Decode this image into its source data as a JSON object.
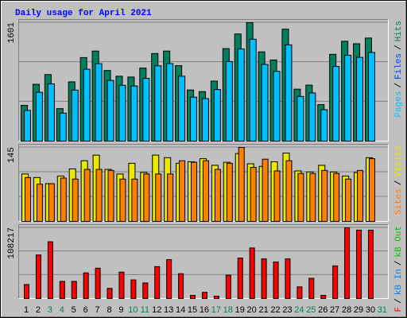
{
  "chart_data": [
    {
      "type": "bar",
      "title": "Daily usage for April 2021",
      "title_color": "#0000ff",
      "ylim": [
        0,
        1601
      ],
      "yticks": [
        1601
      ],
      "grid": true,
      "series": [
        {
          "name": "Hits",
          "color": "#00805c",
          "values": [
            483,
            768,
            899,
            439,
            801,
            1129,
            1217,
            954,
            877,
            866,
            987,
            1184,
            1217,
            1020,
            691,
            669,
            811,
            1250,
            1448,
            1601,
            1206,
            1097,
            1513,
            702,
            757,
            493,
            1173,
            1349,
            1316,
            1393,
            null
          ]
        },
        {
          "name": "Files",
          "color": "#0040ff",
          "values": [
            266,
            422,
            494,
            241,
            441,
            621,
            669,
            525,
            482,
            476,
            543,
            651,
            669,
            561,
            380,
            368,
            446,
            688,
            796,
            881,
            663,
            603,
            832,
            386,
            416,
            271,
            645,
            742,
            724,
            766,
            null
          ]
        },
        {
          "name": "Pages",
          "color": "#00c0ff",
          "values": [
            415,
            660,
            773,
            378,
            689,
            971,
            1047,
            820,
            754,
            745,
            849,
            1018,
            1047,
            877,
            594,
            575,
            697,
            1075,
            1245,
            1377,
            1037,
            943,
            1301,
            604,
            651,
            424,
            1009,
            1160,
            1132,
            1198,
            null
          ]
        }
      ]
    },
    {
      "type": "bar",
      "ylim": [
        0,
        145
      ],
      "yticks": [
        145
      ],
      "grid": true,
      "series": [
        {
          "name": "Visits",
          "color": "#e8e800",
          "values": [
            93,
            86,
            74,
            89,
            103,
            119,
            130,
            102,
            93,
            114,
            96,
            130,
            125,
            114,
            117,
            123,
            110,
            116,
            133,
            113,
            108,
            117,
            134,
            99,
            97,
            110,
            97,
            89,
            96,
            125,
            null
          ]
        },
        {
          "name": "Sites",
          "color": "#ff8000",
          "values": [
            86,
            73,
            74,
            85,
            83,
            102,
            102,
            100,
            83,
            83,
            93,
            93,
            93,
            119,
            116,
            119,
            102,
            114,
            145,
            106,
            122,
            99,
            119,
            94,
            94,
            100,
            94,
            83,
            100,
            123,
            null
          ]
        }
      ]
    },
    {
      "type": "bar",
      "ylim": [
        0,
        108217
      ],
      "yticks": [
        108217
      ],
      "grid": true,
      "categories": [
        "1",
        "2",
        "3",
        "4",
        "5",
        "6",
        "7",
        "8",
        "9",
        "10",
        "11",
        "12",
        "13",
        "14",
        "15",
        "16",
        "17",
        "18",
        "19",
        "20",
        "21",
        "22",
        "23",
        "24",
        "25",
        "26",
        "27",
        "28",
        "29",
        "30",
        "31"
      ],
      "category_colors": [
        "#000000",
        "#000000",
        "#00805c",
        "#00805c",
        "#000000",
        "#000000",
        "#000000",
        "#000000",
        "#000000",
        "#00805c",
        "#00805c",
        "#000000",
        "#000000",
        "#000000",
        "#000000",
        "#000000",
        "#00805c",
        "#00805c",
        "#000000",
        "#000000",
        "#000000",
        "#000000",
        "#000000",
        "#00805c",
        "#00805c",
        "#000000",
        "#000000",
        "#000000",
        "#000000",
        "#000000",
        "#00805c"
      ],
      "series": [
        {
          "name": "kB F",
          "color": "#ff0000",
          "values": [
            21400,
            66600,
            86800,
            26200,
            26200,
            39200,
            46400,
            15500,
            40400,
            28500,
            23800,
            48800,
            59500,
            38000,
            4800,
            9500,
            3600,
            35700,
            61800,
            77300,
            60600,
            55900,
            60600,
            17800,
            30900,
            4800,
            49900,
            108217,
            104600,
            104600,
            null
          ]
        }
      ],
      "legend_extra": [
        {
          "name": "kB In",
          "color": "#0080ff"
        },
        {
          "name": "kB Out",
          "color": "#00c000"
        }
      ]
    }
  ],
  "legend_separator": "/"
}
